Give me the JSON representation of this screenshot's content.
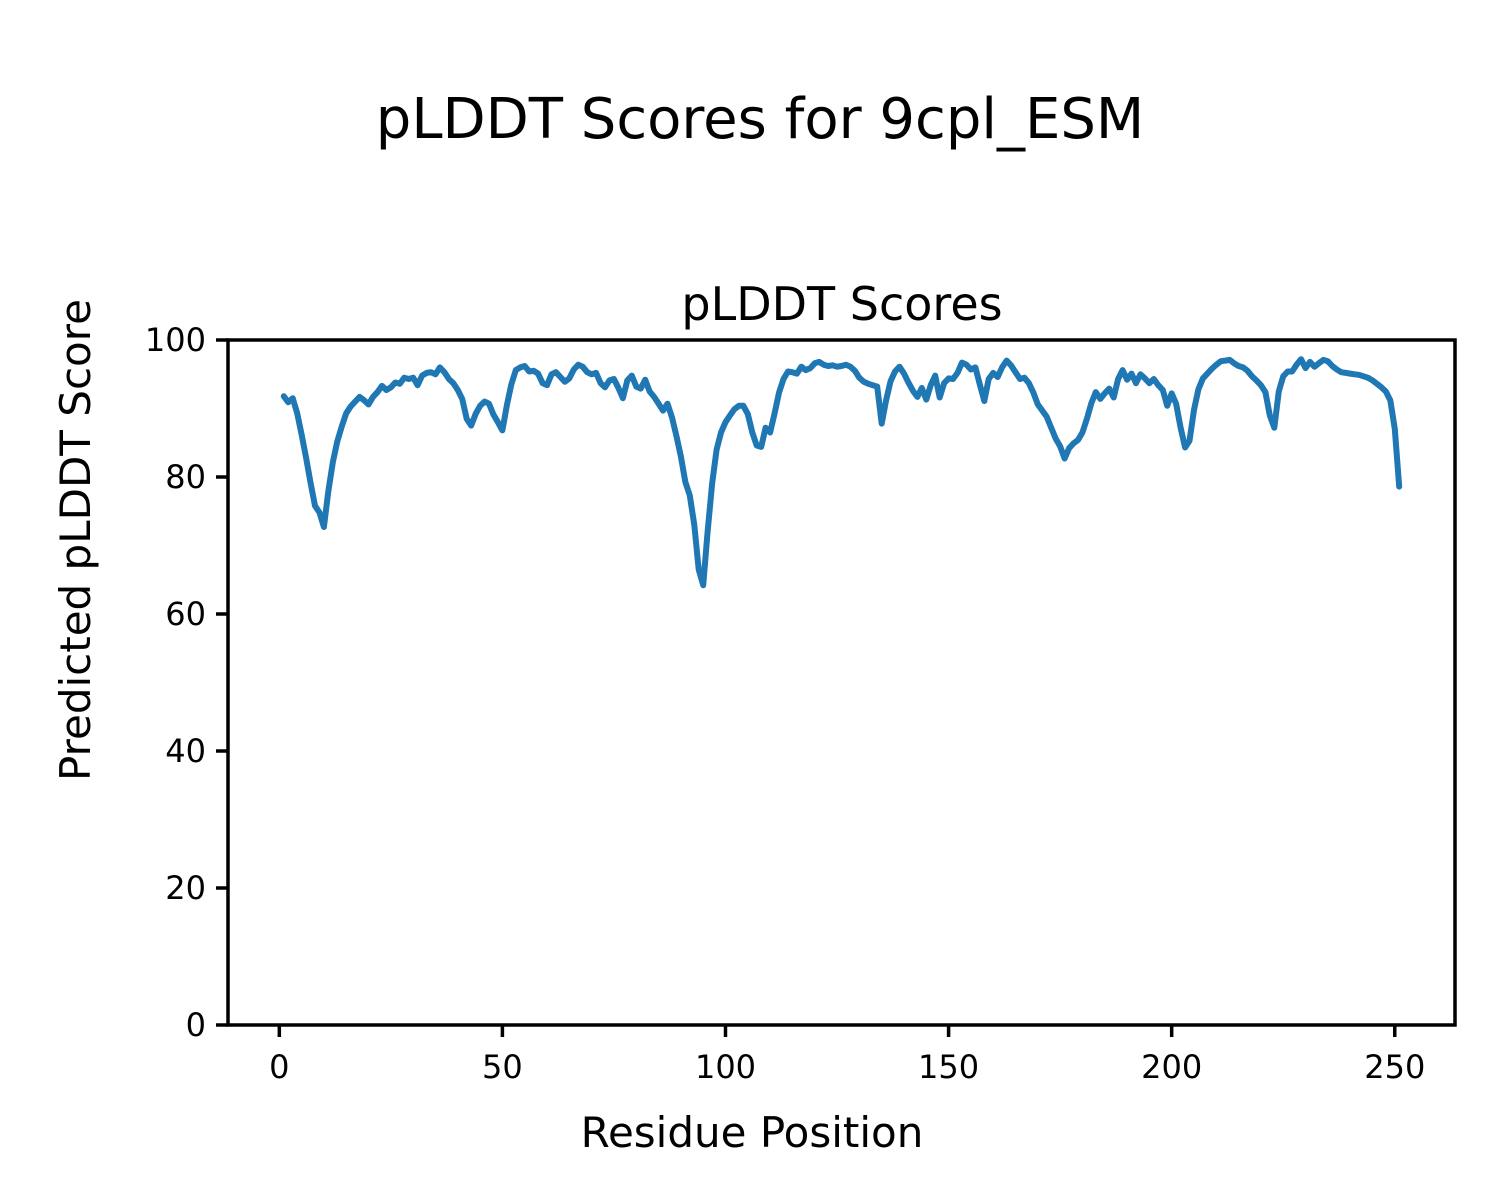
{
  "figure": {
    "suptitle": "pLDDT Scores for 9cpl_ESM",
    "background": "#ffffff"
  },
  "chart_data": {
    "type": "line",
    "title": "pLDDT Scores",
    "xlabel": "Residue Position",
    "ylabel": "Predicted pLDDT Score",
    "legend": null,
    "grid": false,
    "line_color": "#1f77b4",
    "line_width": 6,
    "spine_color": "#000000",
    "text_color": "#000000",
    "xlim": [
      -11.5,
      263.5
    ],
    "ylim": [
      0,
      100
    ],
    "x_ticks": [
      0,
      50,
      100,
      150,
      200,
      250
    ],
    "y_ticks": [
      0,
      20,
      40,
      60,
      80,
      100
    ],
    "x_start": 1,
    "x_step": 1,
    "values": [
      91.8,
      90.9,
      91.5,
      89.3,
      86.2,
      82.8,
      79.2,
      75.8,
      74.8,
      72.7,
      78.0,
      82.2,
      85.2,
      87.4,
      89.3,
      90.3,
      91.0,
      91.7,
      91.2,
      90.6,
      91.7,
      92.4,
      93.3,
      92.7,
      93.1,
      93.8,
      93.6,
      94.5,
      94.3,
      94.5,
      93.4,
      94.8,
      95.2,
      95.3,
      95.0,
      96.0,
      95.3,
      94.3,
      93.7,
      92.7,
      91.4,
      88.5,
      87.5,
      89.2,
      90.4,
      91.0,
      90.7,
      89.1,
      88.0,
      86.8,
      90.5,
      93.5,
      95.6,
      96.0,
      96.2,
      95.4,
      95.5,
      95.1,
      93.7,
      93.4,
      95.0,
      95.3,
      94.6,
      93.9,
      94.4,
      95.7,
      96.4,
      96.1,
      95.3,
      95.0,
      95.2,
      93.7,
      93.1,
      94.1,
      94.3,
      93.0,
      91.5,
      94.1,
      94.8,
      93.2,
      92.9,
      94.2,
      92.5,
      91.7,
      90.7,
      89.7,
      90.7,
      88.7,
      86.0,
      83.0,
      79.3,
      77.3,
      73.0,
      66.5,
      64.2,
      72.0,
      79.0,
      84.0,
      86.5,
      88.0,
      89.0,
      89.9,
      90.4,
      90.4,
      89.2,
      86.5,
      84.6,
      84.4,
      87.2,
      86.5,
      89.3,
      92.3,
      94.3,
      95.4,
      95.3,
      95.1,
      96.1,
      95.6,
      95.9,
      96.6,
      96.8,
      96.4,
      96.2,
      96.3,
      96.1,
      96.2,
      96.4,
      96.1,
      95.5,
      94.5,
      93.9,
      93.6,
      93.4,
      93.2,
      87.8,
      91.2,
      94.0,
      95.4,
      96.1,
      95.1,
      93.8,
      92.6,
      91.7,
      93.0,
      91.3,
      93.4,
      94.8,
      91.6,
      93.7,
      94.4,
      94.3,
      95.2,
      96.7,
      96.4,
      95.7,
      96.0,
      93.5,
      91.1,
      94.3,
      95.2,
      94.6,
      96.0,
      97.0,
      96.3,
      95.3,
      94.3,
      94.5,
      93.7,
      92.3,
      90.6,
      89.7,
      88.8,
      87.2,
      85.6,
      84.5,
      82.7,
      84.2,
      84.9,
      85.4,
      86.5,
      88.5,
      90.8,
      92.4,
      91.4,
      92.2,
      92.9,
      91.6,
      94.3,
      95.6,
      94.2,
      95.1,
      93.7,
      95.0,
      94.4,
      93.7,
      94.3,
      93.4,
      92.7,
      90.4,
      92.2,
      90.7,
      87.2,
      84.3,
      85.3,
      89.8,
      92.8,
      94.4,
      95.1,
      95.8,
      96.4,
      96.9,
      97.0,
      97.1,
      96.6,
      96.2,
      96.0,
      95.5,
      94.7,
      94.1,
      93.4,
      92.4,
      89.0,
      87.2,
      92.5,
      94.7,
      95.4,
      95.4,
      96.4,
      97.2,
      95.9,
      96.8,
      96.1,
      96.6,
      97.1,
      96.9,
      96.2,
      95.7,
      95.3,
      95.2,
      95.1,
      95.0,
      94.9,
      94.7,
      94.5,
      94.1,
      93.6,
      93.1,
      92.5,
      91.2,
      87.0,
      78.6
    ]
  }
}
